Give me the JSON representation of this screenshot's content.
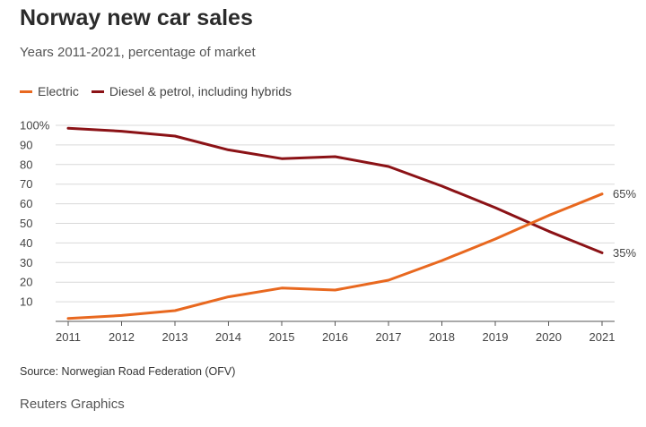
{
  "chart_data": {
    "type": "line",
    "title": "Norway new car sales",
    "subtitle": "Years 2011-2021, percentage of market",
    "x": [
      "2011",
      "2012",
      "2013",
      "2014",
      "2015",
      "2016",
      "2017",
      "2018",
      "2019",
      "2020",
      "2021"
    ],
    "ylim": [
      0,
      100
    ],
    "yticks": [
      10,
      20,
      30,
      40,
      50,
      60,
      70,
      80,
      90,
      100
    ],
    "ytick_labels": [
      "10",
      "20",
      "30",
      "40",
      "50",
      "60",
      "70",
      "80",
      "90",
      "100%"
    ],
    "grid": true,
    "legend_position": "top-left",
    "series": [
      {
        "name": "Electric",
        "color": "#e8681f",
        "values": [
          1.5,
          3,
          5.5,
          12.5,
          17,
          16,
          21,
          31,
          42,
          54,
          65
        ],
        "end_label": "65%"
      },
      {
        "name": "Diesel & petrol, including hybrids",
        "color": "#8b1216",
        "values": [
          98.5,
          97,
          94.5,
          87.5,
          83,
          84,
          79,
          69,
          58,
          46,
          35
        ],
        "end_label": "35%"
      }
    ],
    "source": "Source: Norwegian Road Federation (OFV)",
    "credit": "Reuters Graphics"
  }
}
